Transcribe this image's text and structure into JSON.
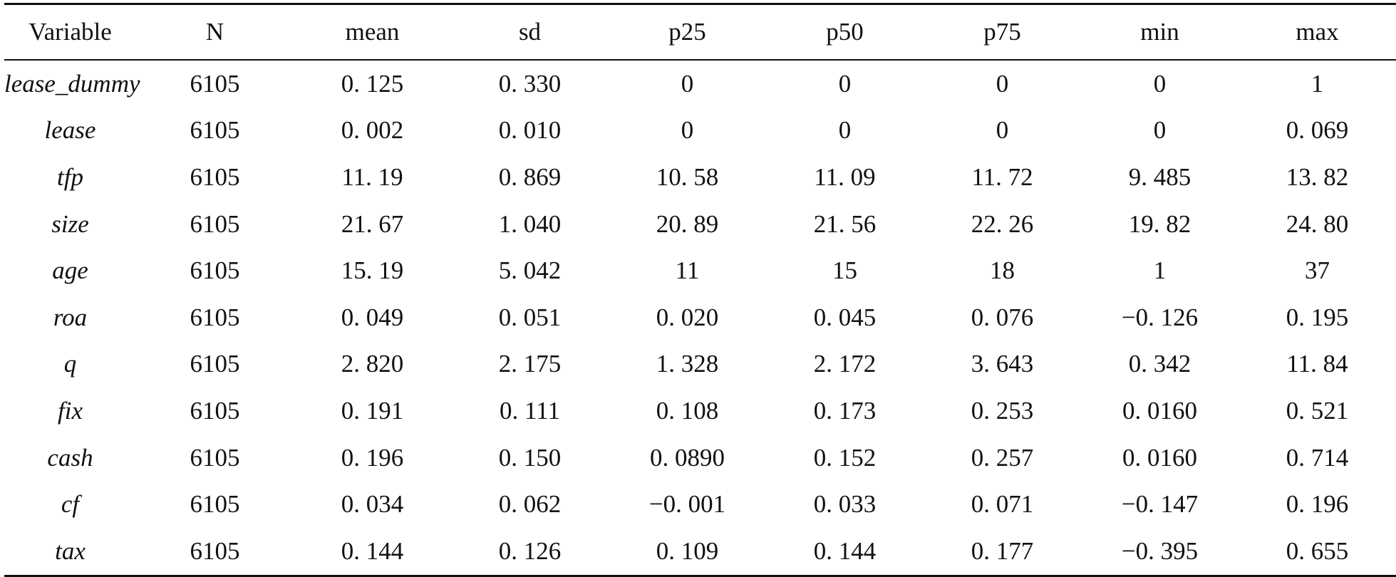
{
  "table": {
    "headers": [
      "Variable",
      "N",
      "mean",
      "sd",
      "p25",
      "p50",
      "p75",
      "min",
      "max"
    ],
    "rows": [
      [
        "lease_dummy",
        "6105",
        "0. 125",
        "0. 330",
        "0",
        "0",
        "0",
        "0",
        "1"
      ],
      [
        "lease",
        "6105",
        "0. 002",
        "0. 010",
        "0",
        "0",
        "0",
        "0",
        "0. 069"
      ],
      [
        "tfp",
        "6105",
        "11. 19",
        "0. 869",
        "10. 58",
        "11. 09",
        "11. 72",
        "9. 485",
        "13. 82"
      ],
      [
        "size",
        "6105",
        "21. 67",
        "1. 040",
        "20. 89",
        "21. 56",
        "22. 26",
        "19. 82",
        "24. 80"
      ],
      [
        "age",
        "6105",
        "15. 19",
        "5. 042",
        "11",
        "15",
        "18",
        "1",
        "37"
      ],
      [
        "roa",
        "6105",
        "0. 049",
        "0. 051",
        "0. 020",
        "0. 045",
        "0. 076",
        "−0. 126",
        "0. 195"
      ],
      [
        "q",
        "6105",
        "2. 820",
        "2. 175",
        "1. 328",
        "2. 172",
        "3. 643",
        "0. 342",
        "11. 84"
      ],
      [
        "fix",
        "6105",
        "0. 191",
        "0. 111",
        "0. 108",
        "0. 173",
        "0. 253",
        "0. 0160",
        "0. 521"
      ],
      [
        "cash",
        "6105",
        "0. 196",
        "0. 150",
        "0. 0890",
        "0. 152",
        "0. 257",
        "0. 0160",
        "0. 714"
      ],
      [
        "cf",
        "6105",
        "0. 034",
        "0. 062",
        "−0. 001",
        "0. 033",
        "0. 071",
        "−0. 147",
        "0. 196"
      ],
      [
        "tax",
        "6105",
        "0. 144",
        "0. 126",
        "0. 109",
        "0. 144",
        "0. 177",
        "−0. 395",
        "0. 655"
      ]
    ]
  }
}
